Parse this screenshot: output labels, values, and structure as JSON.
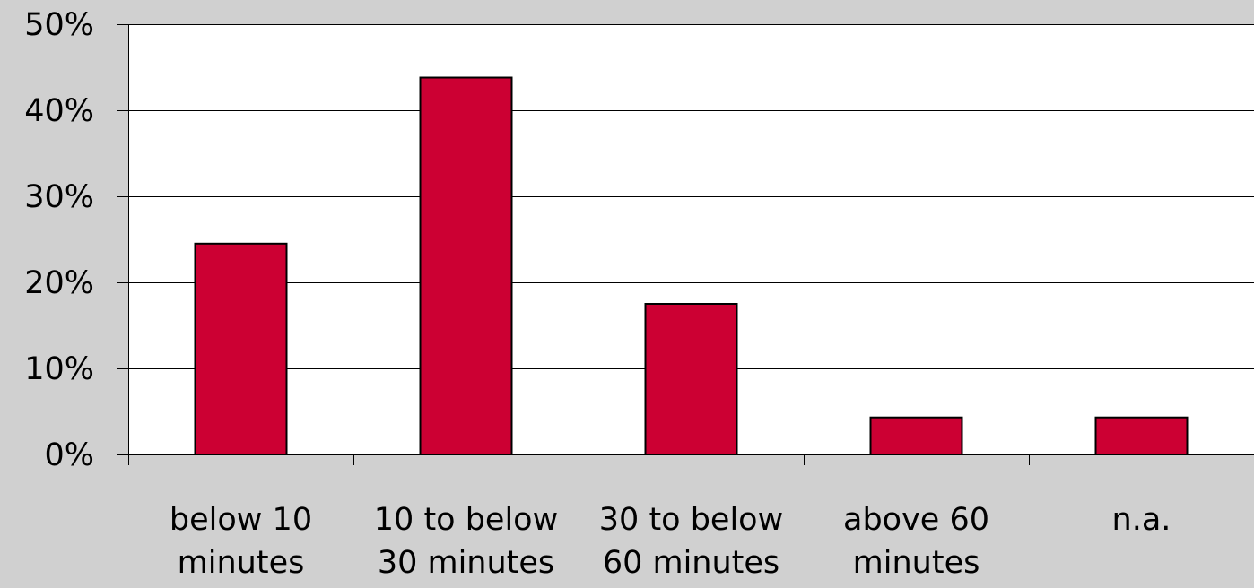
{
  "chart_data": {
    "type": "bar",
    "title": "",
    "xlabel": "",
    "ylabel": "",
    "categories": [
      [
        "below 10",
        "minutes"
      ],
      [
        "10 to below",
        "30 minutes"
      ],
      [
        "30 to below",
        "60 minutes"
      ],
      [
        "above 60",
        "minutes"
      ],
      [
        "n.a."
      ]
    ],
    "values": [
      24.5,
      43.8,
      17.5,
      4.3,
      4.3
    ],
    "ylim": [
      0,
      50
    ],
    "yticks": [
      0,
      10,
      20,
      30,
      40,
      50
    ],
    "ytick_labels": [
      "0%",
      "10%",
      "20%",
      "30%",
      "40%",
      "50%"
    ],
    "grid": true,
    "legend": "none",
    "colors": {
      "background": "#d0d0d0",
      "plot_area": "#ffffff",
      "bar_fill": "#cc0033",
      "bar_stroke": "#000000",
      "gridline": "#000000"
    }
  }
}
